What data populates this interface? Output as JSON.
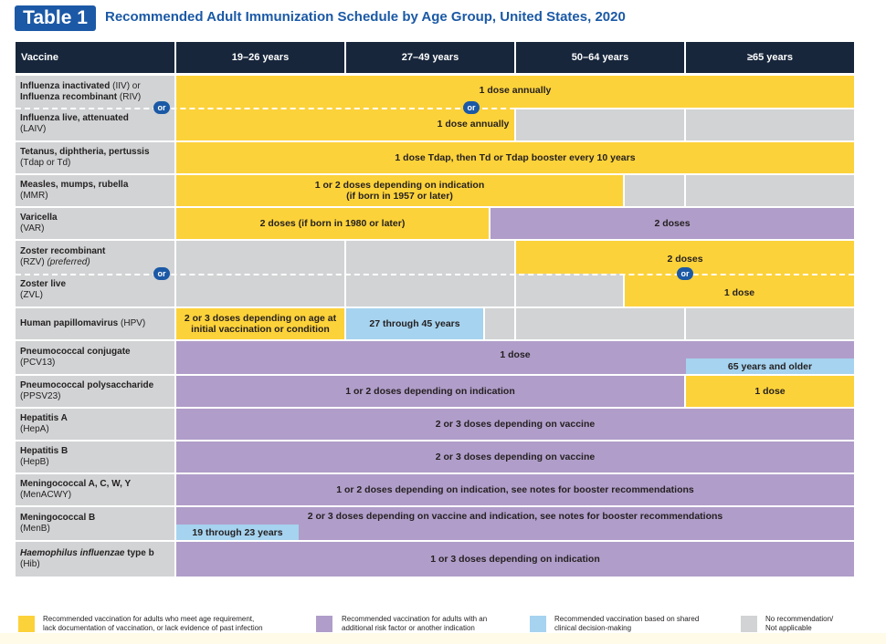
{
  "title": {
    "badge": "Table 1",
    "text": "Recommended Adult Immunization Schedule by Age Group, United States, 2020"
  },
  "header": {
    "vaccine": "Vaccine",
    "ages": [
      "19–26 years",
      "27–49 years",
      "50–64 years",
      "≥65 years"
    ]
  },
  "or_label": "or",
  "vaccines": {
    "influenza_iiv": {
      "line1": "Influenza inactivated",
      "abbr1": "(IIV) or",
      "line2": "Influenza recombinant",
      "abbr2": "(RIV)"
    },
    "influenza_laiv": {
      "name": "Influenza live, attenuated",
      "abbr": "(LAIV)"
    },
    "tdap": {
      "name": "Tetanus, diphtheria, pertussis",
      "abbr": "(Tdap or Td)"
    },
    "mmr": {
      "name": "Measles, mumps, rubella",
      "abbr": "(MMR)"
    },
    "var": {
      "name": "Varicella",
      "abbr": "(VAR)"
    },
    "rzv": {
      "name": "Zoster recombinant",
      "abbr": "(RZV)",
      "note": "(preferred)"
    },
    "zvl": {
      "name": "Zoster live",
      "abbr": "(ZVL)"
    },
    "hpv": {
      "name": "Human papillomavirus",
      "abbr": "(HPV)"
    },
    "pcv13": {
      "name": "Pneumococcal conjugate",
      "abbr": "(PCV13)"
    },
    "ppsv23": {
      "name": "Pneumococcal polysaccharide",
      "abbr": "(PPSV23)"
    },
    "hepa": {
      "name": "Hepatitis A",
      "abbr": "(HepA)"
    },
    "hepb": {
      "name": "Hepatitis B",
      "abbr": "(HepB)"
    },
    "menacwy": {
      "name": "Meningococcal A, C, W, Y",
      "abbr": "(MenACWY)"
    },
    "menb": {
      "name": "Meningococcal B",
      "abbr": "(MenB)"
    },
    "hib": {
      "name_italic": "Haemophilus influenzae",
      "name_rest": "type b",
      "abbr": "(Hib)"
    }
  },
  "cells": {
    "influenza_iiv": "1 dose annually",
    "influenza_laiv": "1 dose annually",
    "tdap": "1 dose Tdap, then Td or Tdap booster every 10 years",
    "mmr_l1": "1 or 2 doses depending on indication",
    "mmr_l2": "(if born in 1957 or later)",
    "var_a": "2 doses (if born in 1980 or later)",
    "var_b": "2 doses",
    "rzv": "2 doses",
    "zvl": "1 dose",
    "hpv_l1": "2 or 3 doses depending on age at",
    "hpv_l2": "initial vaccination or condition",
    "hpv_b": "27 through 45 years",
    "pcv13_main": "1 dose",
    "pcv13_b": "65 years and older",
    "ppsv23_main": "1 or 2 doses depending on indication",
    "ppsv23_y": "1 dose",
    "hepa": "2 or 3 doses depending on vaccine",
    "hepb": "2 or 3 doses depending on vaccine",
    "menacwy": "1 or 2 doses depending on indication, see notes for booster recommendations",
    "menb_main": "2 or 3 doses depending on vaccine and indication, see notes for booster recommendations",
    "menb_b": "19 through 23 years",
    "hib": "1 or 3 doses depending on indication"
  },
  "legend": [
    {
      "line1": "Recommended vaccination for adults who meet age requirement,",
      "line2": "lack documentation of vaccination, or lack evidence of past infection",
      "color": "#fcd23a"
    },
    {
      "line1": "Recommended vaccination for adults with an",
      "line2": "additional risk factor or another indication",
      "color": "#b09dc9"
    },
    {
      "line1": "Recommended vaccination based on shared",
      "line2": "clinical decision-making",
      "color": "#a6d3ef"
    },
    {
      "line1": "No recommendation/",
      "line2": "Not applicable",
      "color": "#d1d3d4"
    }
  ]
}
